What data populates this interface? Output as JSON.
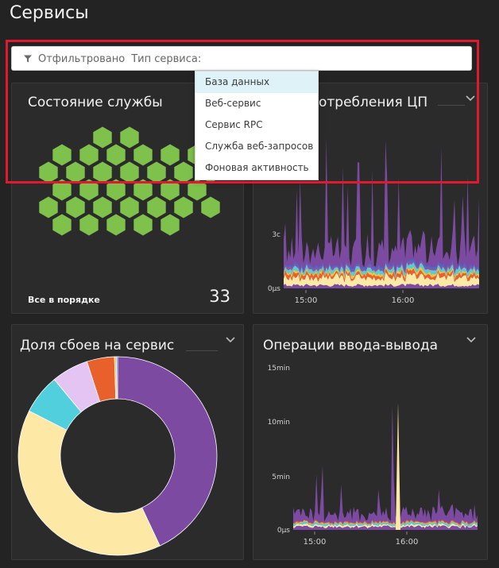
{
  "page": {
    "title": "Сервисы"
  },
  "filter": {
    "prefix": "Отфильтровано",
    "field": "Тип сервиса:",
    "options": [
      "База данных",
      "Веб-сервис",
      "Сервис RPC",
      "Служба веб-запросов",
      "Фоновая активность"
    ],
    "highlighted_option": "База данных"
  },
  "panels": {
    "health": {
      "title": "Состояние службы",
      "status": "Все в порядке",
      "count": "33",
      "hex_color": "#7ec14b"
    },
    "cpu": {
      "title": "Время потребления ЦП",
      "visible_title": "отребления ЦП"
    },
    "failures": {
      "title": "Доля сбоев на сервис"
    },
    "io": {
      "title": "Операции ввода-вывода"
    }
  },
  "chart_data": [
    {
      "type": "area",
      "panel": "cpu",
      "yticks": [
        "0μs",
        "3c"
      ],
      "xticks": [
        "15:00",
        "16:00"
      ],
      "series_colors": [
        "#7c4ba1",
        "#fde8a6",
        "#e8612c",
        "#f2c243",
        "#52cfdc",
        "#b14a8a",
        "#3a6fd8"
      ]
    },
    {
      "type": "pie",
      "panel": "failures",
      "donut": true,
      "slices": [
        {
          "value": 43.0,
          "color": "#7c4ba1"
        },
        {
          "value": 39.5,
          "color": "#fde8a6"
        },
        {
          "value": 6.5,
          "color": "#52cfdc"
        },
        {
          "value": 6.0,
          "color": "#e3c4f3"
        },
        {
          "value": 4.5,
          "color": "#e8612c"
        },
        {
          "value": 0.3,
          "color": "#f2c243"
        },
        {
          "value": 0.2,
          "color": "#3a6fd8"
        }
      ]
    },
    {
      "type": "area",
      "panel": "io",
      "yticks": [
        "0μs",
        "5min",
        "10min",
        "15min"
      ],
      "ylim": [
        0,
        15
      ],
      "xticks": [
        "15:00",
        "16:00"
      ],
      "series_colors": [
        "#7c4ba1",
        "#fde8a6",
        "#52cfdc",
        "#f2c243",
        "#e8612c"
      ],
      "peak": {
        "x": "15:55",
        "y": 11.8
      }
    }
  ]
}
